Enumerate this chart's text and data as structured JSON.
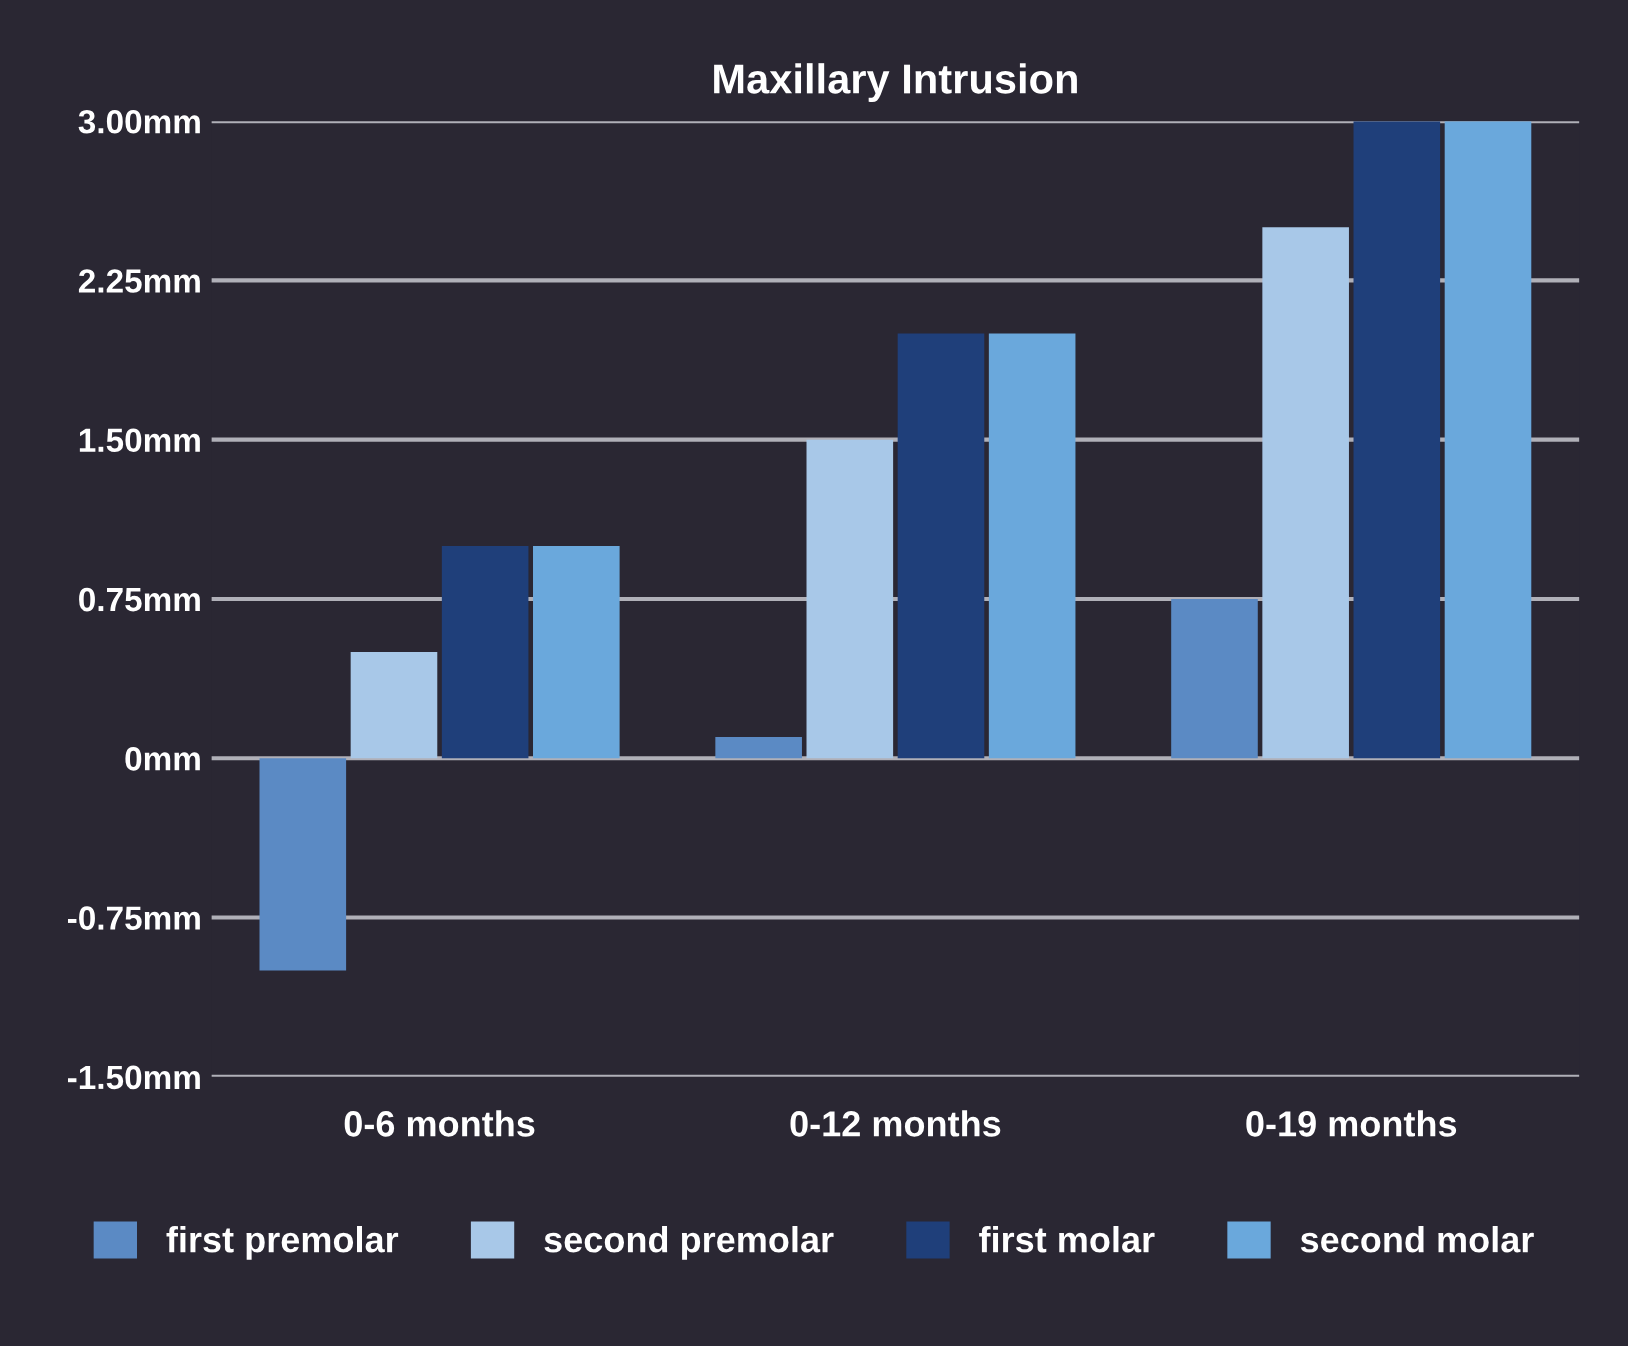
{
  "chart_data": {
    "type": "bar",
    "title": "Maxillary Intrusion",
    "categories": [
      "0-6 months",
      "0-12 months",
      "0-19 months"
    ],
    "series": [
      {
        "name": "first premolar",
        "color": "#5b8ac4",
        "values": [
          -1.0,
          0.1,
          0.75
        ]
      },
      {
        "name": "second premolar",
        "color": "#a8c8e8",
        "values": [
          0.5,
          1.5,
          2.5
        ]
      },
      {
        "name": "first molar",
        "color": "#1f3f7a",
        "values": [
          1.0,
          2.0,
          3.0
        ]
      },
      {
        "name": "second molar",
        "color": "#6aa8dc",
        "values": [
          1.0,
          2.0,
          3.0
        ]
      }
    ],
    "ylim": [
      -1.5,
      3.0
    ],
    "yticks": [
      {
        "value": -1.5,
        "label": "-1.50mm"
      },
      {
        "value": -0.75,
        "label": "-0.75mm"
      },
      {
        "value": 0,
        "label": "0mm"
      },
      {
        "value": 0.75,
        "label": "0.75mm"
      },
      {
        "value": 1.5,
        "label": "1.50mm"
      },
      {
        "value": 2.25,
        "label": "2.25mm"
      },
      {
        "value": 3.0,
        "label": "3.00mm"
      }
    ],
    "grid": "y",
    "legend": "bottom"
  }
}
